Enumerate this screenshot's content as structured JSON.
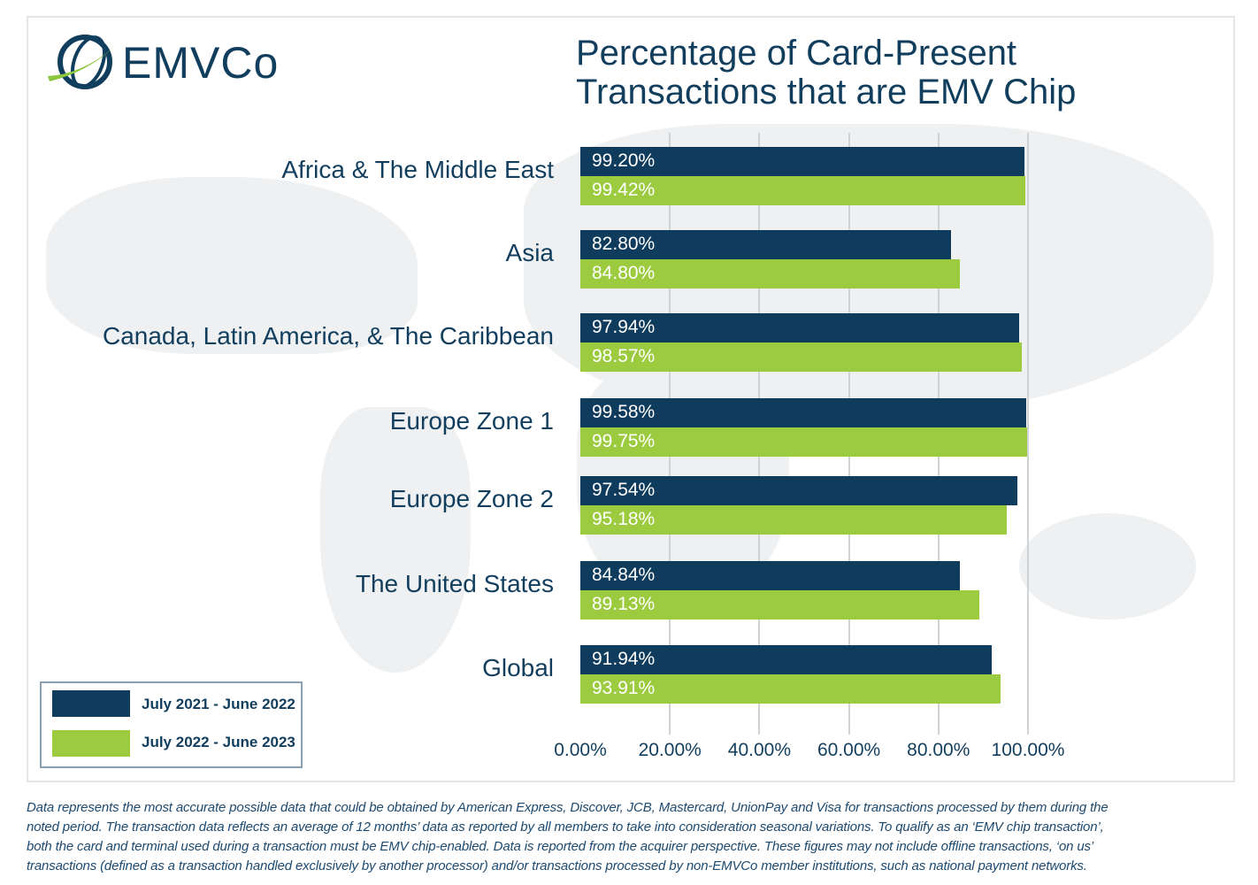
{
  "logo": {
    "text": "EMVCo"
  },
  "colors": {
    "series1": "#0f3b5c",
    "series2": "#9ccb3f",
    "text": "#123e5e"
  },
  "chart_data": {
    "type": "bar",
    "orientation": "horizontal",
    "title": [
      "Percentage of Card-Present",
      "Transactions that are EMV Chip"
    ],
    "categories": [
      "Africa & The Middle East",
      "Asia",
      "Canada, Latin America, & The Caribbean",
      "Europe Zone 1",
      "Europe Zone 2",
      "The United States",
      "Global"
    ],
    "series": [
      {
        "name": "July 2021 - June 2022",
        "values": [
          99.2,
          82.8,
          97.94,
          99.58,
          97.54,
          84.84,
          91.94
        ],
        "labels": [
          "99.20%",
          "82.80%",
          "97.94%",
          "99.58%",
          "97.54%",
          "84.84%",
          "91.94%"
        ]
      },
      {
        "name": "July 2022 - June 2023",
        "values": [
          99.42,
          84.8,
          98.57,
          99.75,
          95.18,
          89.13,
          93.91
        ],
        "labels": [
          "99.42%",
          "84.80%",
          "98.57%",
          "99.75%",
          "95.18%",
          "89.13%",
          "93.91%"
        ]
      }
    ],
    "xlim": [
      0,
      100
    ],
    "xticks": [
      "0.00%",
      "20.00%",
      "40.00%",
      "60.00%",
      "80.00%",
      "100.00%"
    ],
    "grid": true,
    "legend_position": "bottom-left"
  },
  "footer": [
    "Data represents the most accurate possible data that could be obtained by American Express, Discover, JCB, Mastercard, UnionPay and Visa for transactions processed by them during the",
    "noted period. The transaction data reflects an average of 12 months’ data as reported by all members to take into consideration seasonal variations. To qualify as an ‘EMV chip transaction’,",
    "both the card and terminal used during a transaction must be EMV chip-enabled. Data is reported from the acquirer perspective. These figures may not include offline transactions, ‘on us’",
    "transactions (defined as a transaction handled exclusively by another processor) and/or transactions processed by non-EMVCo member institutions, such as national payment networks."
  ]
}
